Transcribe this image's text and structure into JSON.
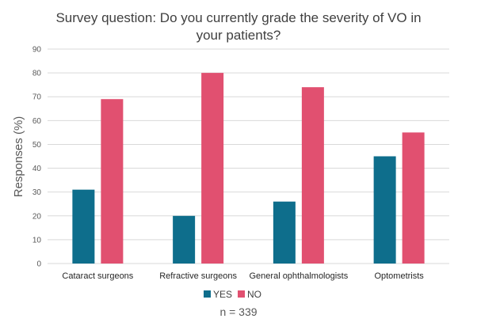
{
  "chart_data": {
    "type": "bar",
    "title": "Survey question: Do you currently grade the severity of VO in your patients?",
    "title_lines": [
      "Survey question: Do you currently grade the severity of VO in",
      "your patients?"
    ],
    "xlabel": "",
    "ylabel": "Responses (%)",
    "ylim": [
      0,
      90
    ],
    "yticks": [
      0,
      10,
      20,
      30,
      40,
      50,
      60,
      70,
      80,
      90
    ],
    "grid": true,
    "legend_position": "bottom",
    "categories": [
      "Cataract surgeons",
      "Refractive surgeons",
      "General ophthalmologists",
      "Optometrists"
    ],
    "series": [
      {
        "name": "YES",
        "color": "#0e6e8c",
        "values": [
          31,
          20,
          26,
          45
        ]
      },
      {
        "name": "NO",
        "color": "#e15070",
        "values": [
          69,
          80,
          74,
          55
        ]
      }
    ],
    "annotation": "n = 339"
  }
}
